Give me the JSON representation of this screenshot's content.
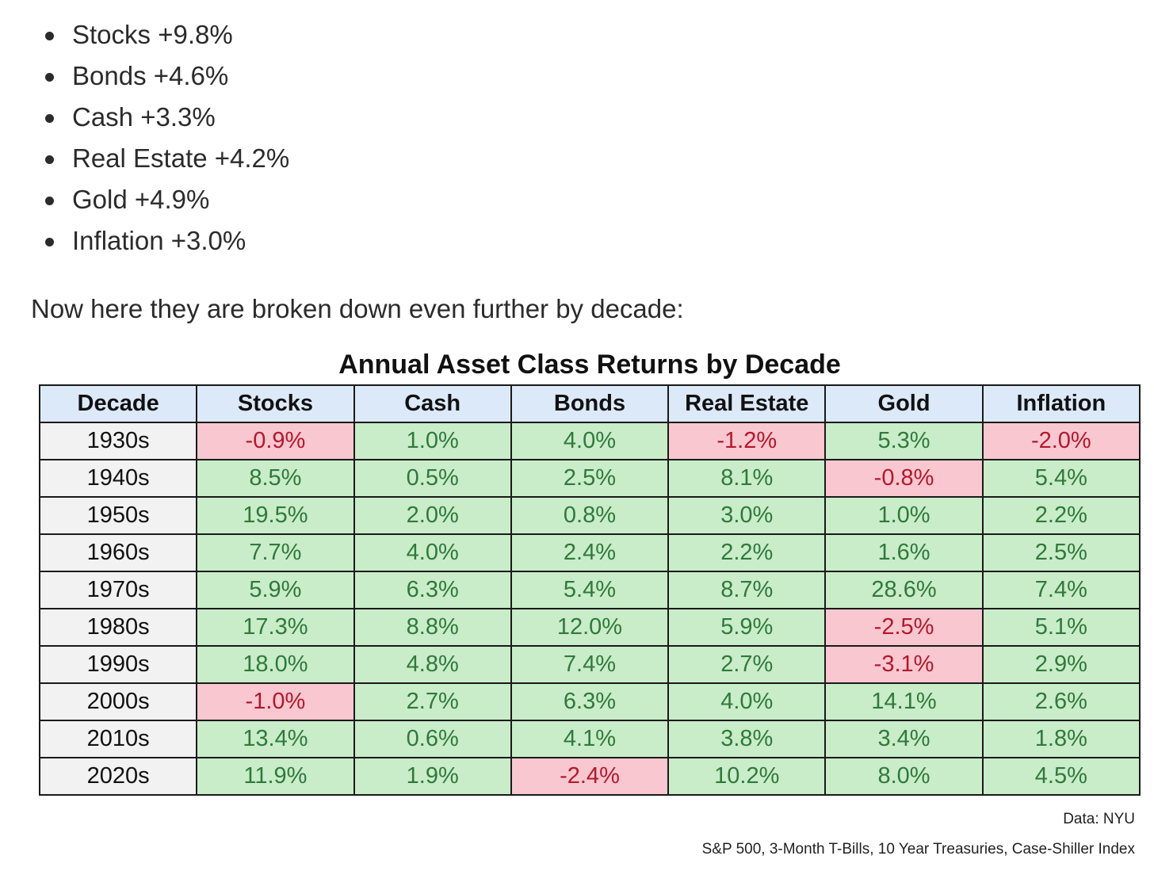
{
  "summary": {
    "items": [
      "Stocks +9.8%",
      "Bonds +4.6%",
      "Cash +3.3%",
      "Real Estate +4.2%",
      "Gold +4.9%",
      "Inflation +3.0%"
    ]
  },
  "lead_text": "Now here they are broken down even further by decade:",
  "chart_data": {
    "type": "table",
    "title": "Annual Asset Class Returns by Decade",
    "columns": [
      "Decade",
      "Stocks",
      "Cash",
      "Bonds",
      "Real Estate",
      "Gold",
      "Inflation"
    ],
    "rows": [
      {
        "decade": "1930s",
        "values": [
          "-0.9%",
          "1.0%",
          "4.0%",
          "-1.2%",
          "5.3%",
          "-2.0%"
        ]
      },
      {
        "decade": "1940s",
        "values": [
          "8.5%",
          "0.5%",
          "2.5%",
          "8.1%",
          "-0.8%",
          "5.4%"
        ]
      },
      {
        "decade": "1950s",
        "values": [
          "19.5%",
          "2.0%",
          "0.8%",
          "3.0%",
          "1.0%",
          "2.2%"
        ]
      },
      {
        "decade": "1960s",
        "values": [
          "7.7%",
          "4.0%",
          "2.4%",
          "2.2%",
          "1.6%",
          "2.5%"
        ]
      },
      {
        "decade": "1970s",
        "values": [
          "5.9%",
          "6.3%",
          "5.4%",
          "8.7%",
          "28.6%",
          "7.4%"
        ]
      },
      {
        "decade": "1980s",
        "values": [
          "17.3%",
          "8.8%",
          "12.0%",
          "5.9%",
          "-2.5%",
          "5.1%"
        ]
      },
      {
        "decade": "1990s",
        "values": [
          "18.0%",
          "4.8%",
          "7.4%",
          "2.7%",
          "-3.1%",
          "2.9%"
        ]
      },
      {
        "decade": "2000s",
        "values": [
          "-1.0%",
          "2.7%",
          "6.3%",
          "4.0%",
          "14.1%",
          "2.6%"
        ]
      },
      {
        "decade": "2010s",
        "values": [
          "13.4%",
          "0.6%",
          "4.1%",
          "3.8%",
          "3.4%",
          "1.8%"
        ]
      },
      {
        "decade": "2020s",
        "values": [
          "11.9%",
          "1.9%",
          "-2.4%",
          "10.2%",
          "8.0%",
          "4.5%"
        ]
      }
    ],
    "colors": {
      "header_bg": "#dce9f8",
      "positive_bg": "#c9ecc9",
      "positive_text": "#2f7a3a",
      "negative_bg": "#f9c7cf",
      "negative_text": "#b3182d",
      "decade_bg": "#f2f2f2"
    },
    "source": "Data: NYU",
    "footnote": "S&P 500, 3-Month T-Bills, 10 Year Treasuries, Case-Shiller Index"
  }
}
